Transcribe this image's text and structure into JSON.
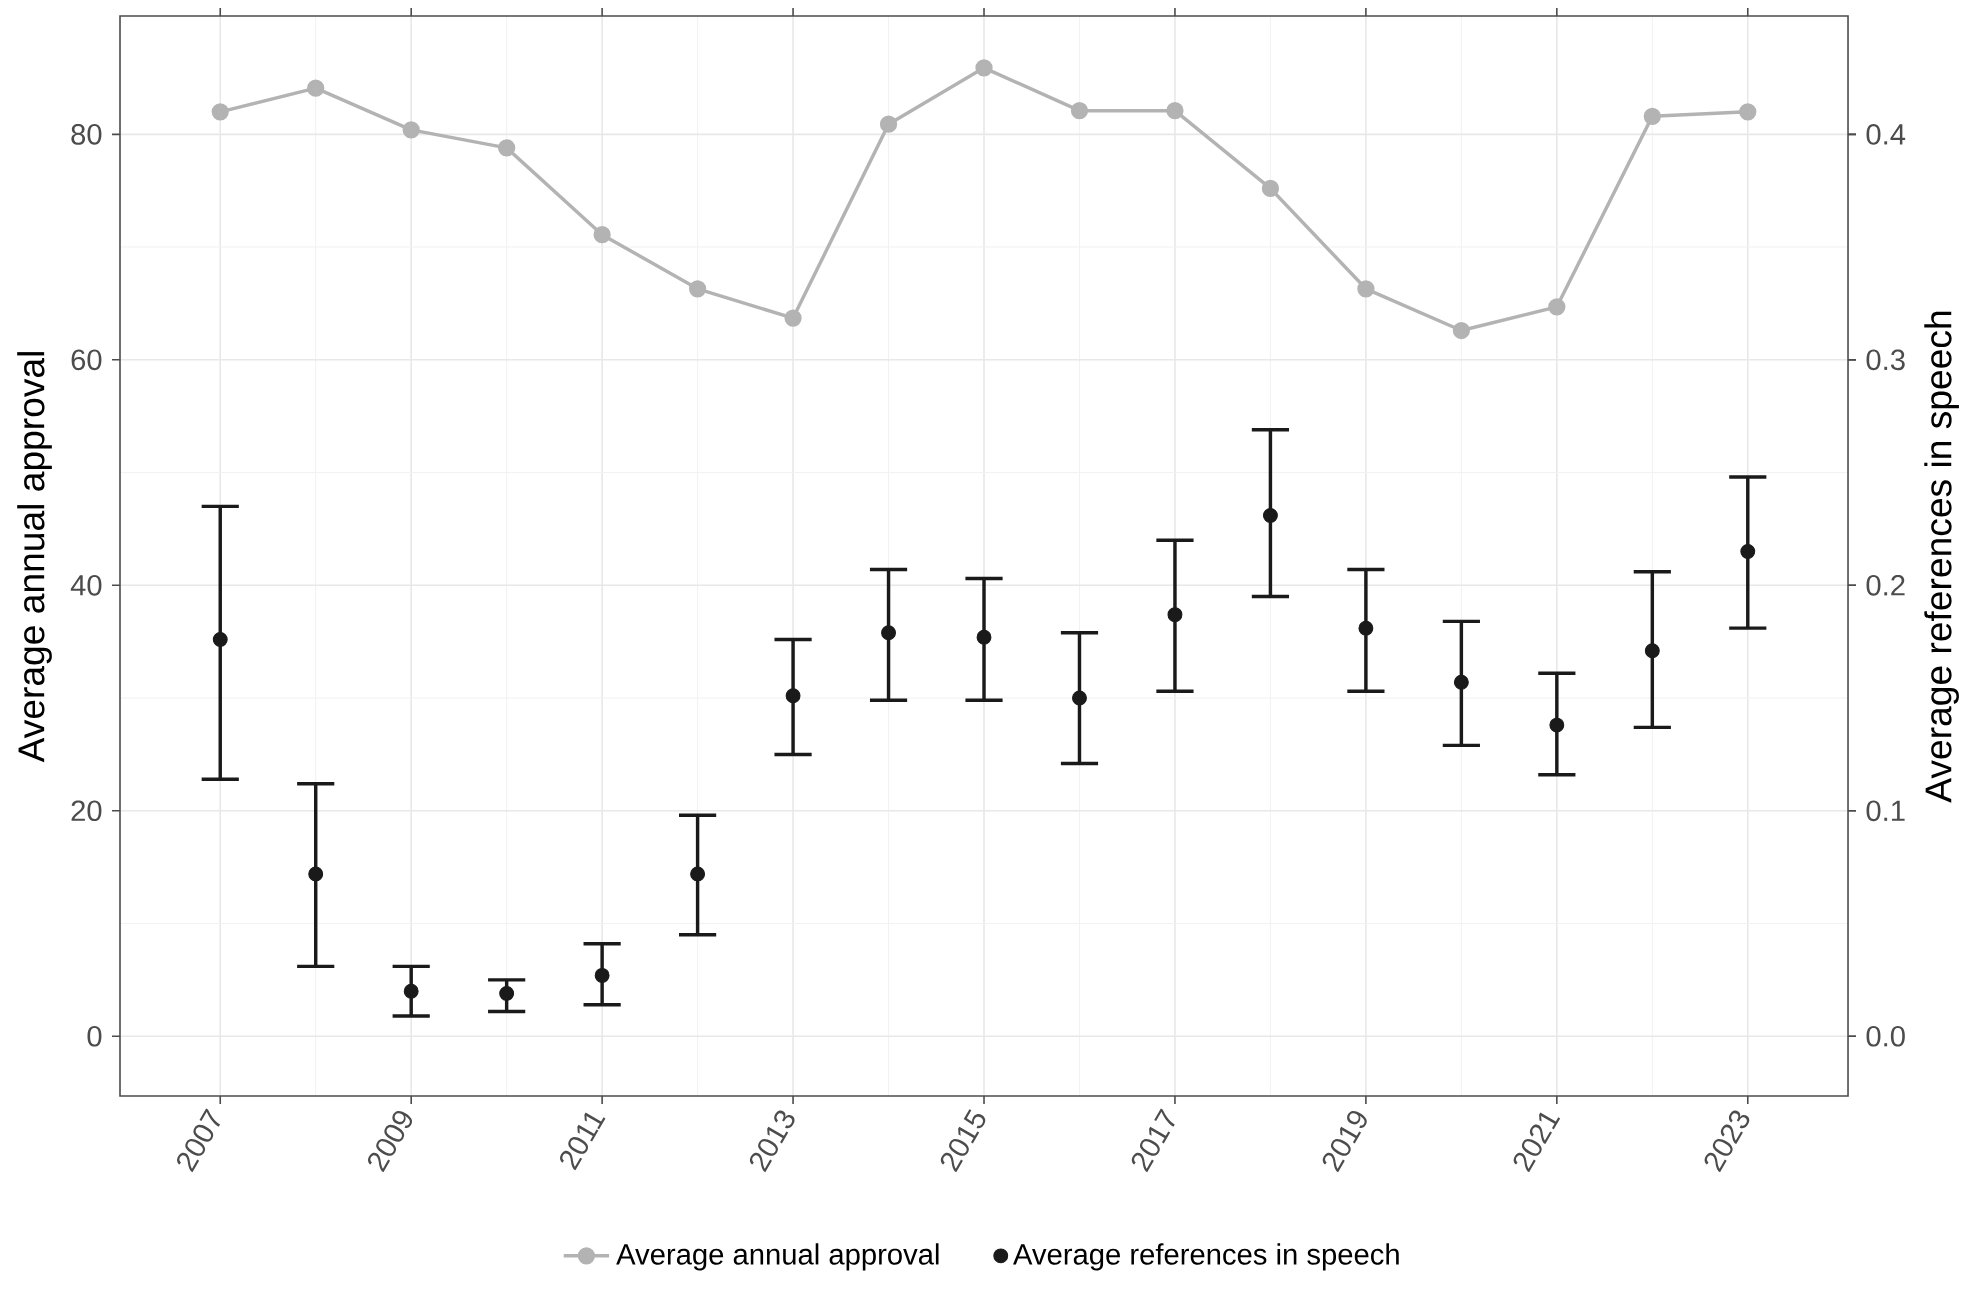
{
  "chart_data": {
    "type": "line",
    "ylabel": "Average annual approval",
    "y2label": "Average references in speech",
    "x": [
      2007,
      2008,
      2009,
      2010,
      2011,
      2012,
      2013,
      2014,
      2015,
      2016,
      2017,
      2018,
      2019,
      2020,
      2021,
      2022,
      2023
    ],
    "xlim": [
      2005.95,
      2024.05
    ],
    "xticks": [
      2007,
      2009,
      2011,
      2013,
      2015,
      2017,
      2019,
      2021,
      2023
    ],
    "ylim": [
      -5.3,
      90.5
    ],
    "yticks": [
      0,
      20,
      40,
      60,
      80
    ],
    "y2lim": [
      -0.0265,
      0.4525
    ],
    "y2ticks": [
      {
        "value": 0,
        "label": "0.0"
      },
      {
        "value": 0.1,
        "label": "0.1"
      },
      {
        "value": 0.2,
        "label": "0.2"
      },
      {
        "value": 0.3,
        "label": "0.3"
      },
      {
        "value": 0.4,
        "label": "0.4"
      }
    ],
    "series": [
      {
        "name": "Average annual approval",
        "color": "#b3b3b3",
        "values": [
          82,
          84.1,
          80.4,
          78.8,
          71.1,
          66.3,
          63.7,
          80.9,
          85.9,
          82.1,
          82.1,
          75.2,
          66.3,
          62.6,
          64.7,
          81.6,
          82
        ]
      },
      {
        "name": "Average references in speech",
        "type": "scatter",
        "axis": "y2",
        "color": "#1a1a1a",
        "values": [
          0.176,
          0.072,
          0.02,
          0.019,
          0.027,
          0.072,
          0.151,
          0.179,
          0.177,
          0.15,
          0.187,
          0.231,
          0.181,
          0.157,
          0.138,
          0.171,
          0.215
        ],
        "errors": [
          [
            0.114,
            0.235
          ],
          [
            0.031,
            0.112
          ],
          [
            0.009,
            0.031
          ],
          [
            0.011,
            0.025
          ],
          [
            0.014,
            0.041
          ],
          [
            0.045,
            0.098
          ],
          [
            0.125,
            0.176
          ],
          [
            0.149,
            0.207
          ],
          [
            0.149,
            0.203
          ],
          [
            0.121,
            0.179
          ],
          [
            0.153,
            0.22
          ],
          [
            0.195,
            0.269
          ],
          [
            0.153,
            0.207
          ],
          [
            0.129,
            0.184
          ],
          [
            0.116,
            0.161
          ],
          [
            0.137,
            0.206
          ],
          [
            0.181,
            0.248
          ]
        ]
      }
    ],
    "marker": "circle",
    "grid": true,
    "legend": "bottom"
  }
}
